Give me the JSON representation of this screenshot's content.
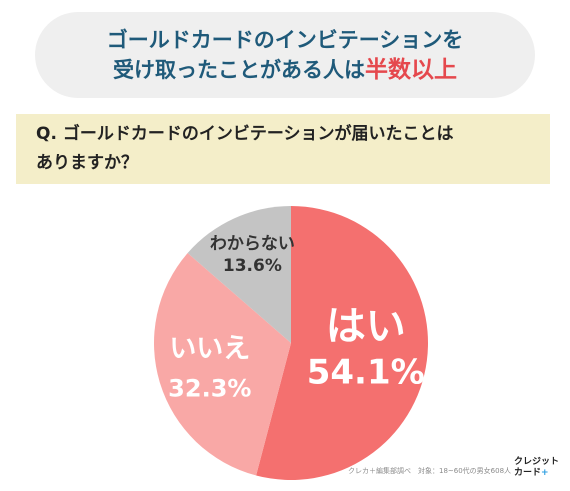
{
  "header": {
    "title_line1": "ゴールドカードのインビテーションを",
    "title_line2_prefix": "受け取ったことがある人は",
    "title_highlight": "半数以上"
  },
  "question": {
    "line1": "Q. ゴールドカードのインビテーションが届いたことは",
    "line2": "ありますか？"
  },
  "chart_data": {
    "type": "pie",
    "slices": [
      {
        "label": "はい",
        "value": 54.1,
        "value_label": "54.1%",
        "color": "#f4706f"
      },
      {
        "label": "いいえ",
        "value": 32.3,
        "value_label": "32.3%",
        "color": "#f9a8a6"
      },
      {
        "label": "わからない",
        "value": 13.6,
        "value_label": "13.6%",
        "color": "#c4c4c4"
      }
    ]
  },
  "footer": {
    "source": "クレカ＋編集部調べ　対象：18~60代の男女608人"
  },
  "logo": {
    "line1": "クレジット",
    "line2": "カード",
    "plus": "+"
  }
}
